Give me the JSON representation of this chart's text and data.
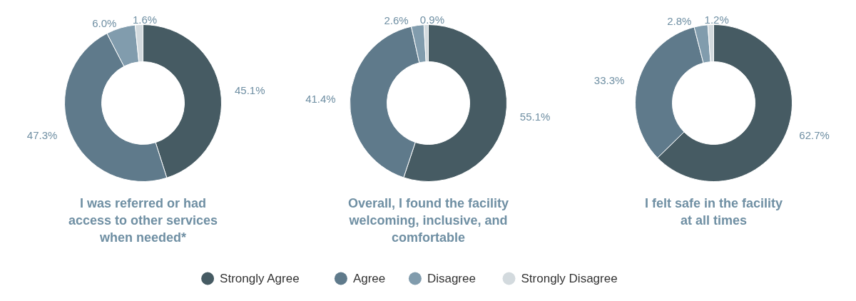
{
  "chart_data": [
    {
      "type": "donut",
      "title": "I was referred or had\naccess to other services\nwhen needed*",
      "categories": [
        "Strongly Agree",
        "Agree",
        "Disagree",
        "Strongly Disagree"
      ],
      "values": [
        45.1,
        47.3,
        6.0,
        1.6
      ],
      "colors": [
        "#465b63",
        "#5f7a8b",
        "#819cad",
        "#d3dade"
      ],
      "value_labels": [
        "45.1%",
        "47.3%",
        "6.0%",
        "1.6%"
      ],
      "legend": "bottom"
    },
    {
      "type": "donut",
      "title": "Overall, I found the facility\nwelcoming, inclusive, and\ncomfortable",
      "values": [
        55.1,
        41.4,
        2.6,
        0.9
      ],
      "colors": [
        "#465b63",
        "#5f7a8b",
        "#819cad",
        "#d3dade"
      ],
      "value_labels": [
        "55.1%",
        "41.4%",
        "2.6%",
        "0.9%"
      ]
    },
    {
      "type": "donut",
      "title": "I felt safe in the facility\nat all times",
      "values": [
        62.7,
        33.3,
        2.8,
        1.2
      ],
      "colors": [
        "#465b63",
        "#5f7a8b",
        "#819cad",
        "#d3dade"
      ],
      "value_labels": [
        "62.7%",
        "33.3%",
        "2.8%",
        "1.2%"
      ]
    }
  ]
}
